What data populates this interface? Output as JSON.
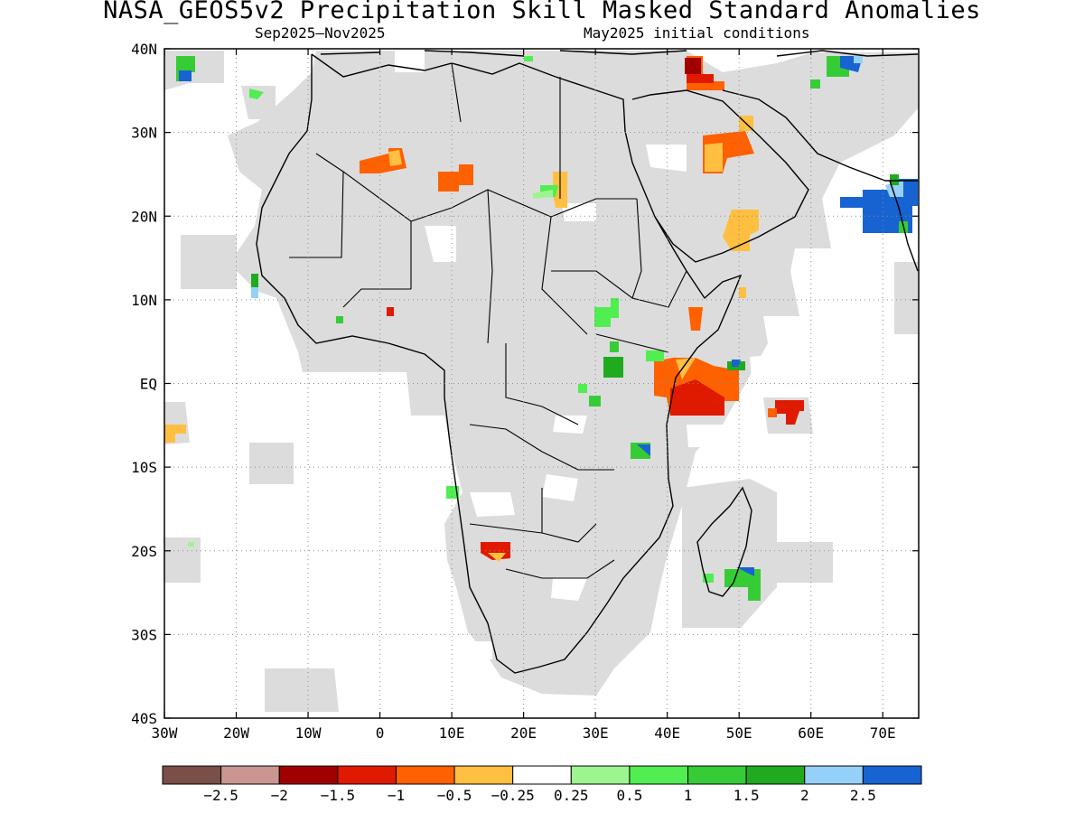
{
  "title": "NASA_GEOS5v2 Precipitation Skill Masked Standard Anomalies",
  "subtitle_left": "Sep2025–Nov2025",
  "subtitle_right": "May2025 initial conditions",
  "axes": {
    "x_ticks": [
      "30W",
      "20W",
      "10W",
      "0",
      "10E",
      "20E",
      "30E",
      "40E",
      "50E",
      "60E",
      "70E"
    ],
    "y_ticks": [
      "40N",
      "30N",
      "20N",
      "10N",
      "EQ",
      "10S",
      "20S",
      "30S",
      "40S"
    ],
    "lon_range": [
      -30,
      75
    ],
    "lat_range": [
      -40,
      40
    ],
    "grid": "dotted"
  },
  "colorbar": {
    "colors": [
      "#7a4f47",
      "#c9978f",
      "#a00000",
      "#e01a00",
      "#ff6000",
      "#ffbf40",
      "#ffffff",
      "#9df58f",
      "#50ee50",
      "#36cc36",
      "#20aa20",
      "#95d0f8",
      "#1863d2"
    ],
    "labels": [
      "−2.5",
      "−2",
      "−1.5",
      "−1",
      "−0.5",
      "−0.25",
      "0.25",
      "0.5",
      "1",
      "1.5",
      "2",
      "2.5"
    ]
  },
  "colors": {
    "masked_land": "#dcdcdc",
    "coast": "#000000"
  }
}
